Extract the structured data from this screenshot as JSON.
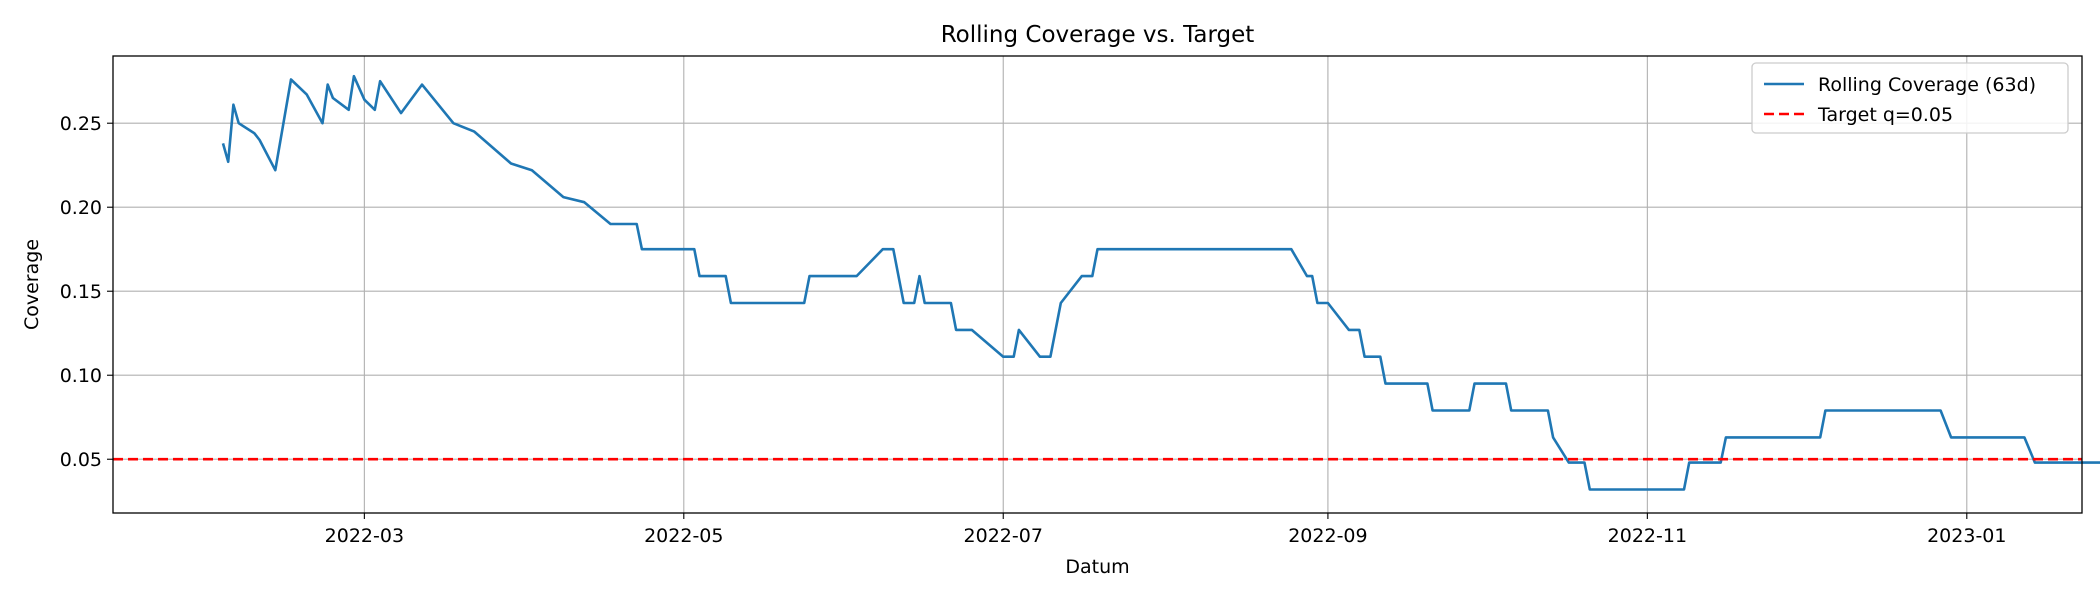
{
  "chart_data": {
    "type": "line",
    "title": "Rolling Coverage vs. Target",
    "xlabel": "Datum",
    "ylabel": "Coverage",
    "x_type": "date",
    "xlim": [
      "2022-01-12",
      "2023-01-23"
    ],
    "ylim": [
      0.018,
      0.29
    ],
    "grid": true,
    "legend_position": "top-right",
    "x_ticks": [
      "2022-03",
      "2022-05",
      "2022-07",
      "2022-09",
      "2022-11",
      "2023-01"
    ],
    "y_ticks": [
      "0.05",
      "0.10",
      "0.15",
      "0.20",
      "0.25"
    ],
    "series": [
      {
        "name": "Rolling Coverage (63d)",
        "color": "#1f77b4",
        "style": "solid",
        "points": [
          [
            "2022-02-02",
            0.238
          ],
          [
            "2022-02-03",
            0.227
          ],
          [
            "2022-02-04",
            0.261
          ],
          [
            "2022-02-05",
            0.25
          ],
          [
            "2022-02-08",
            0.244
          ],
          [
            "2022-02-09",
            0.24
          ],
          [
            "2022-02-12",
            0.222
          ],
          [
            "2022-02-15",
            0.276
          ],
          [
            "2022-02-18",
            0.267
          ],
          [
            "2022-02-21",
            0.25
          ],
          [
            "2022-02-22",
            0.273
          ],
          [
            "2022-02-23",
            0.265
          ],
          [
            "2022-02-26",
            0.258
          ],
          [
            "2022-02-27",
            0.278
          ],
          [
            "2022-02-29",
            0.264
          ],
          [
            "2022-03-03",
            0.258
          ],
          [
            "2022-03-04",
            0.275
          ],
          [
            "2022-03-08",
            0.256
          ],
          [
            "2022-03-12",
            0.273
          ],
          [
            "2022-03-18",
            0.25
          ],
          [
            "2022-03-22",
            0.245
          ],
          [
            "2022-03-29",
            0.226
          ],
          [
            "2022-04-02",
            0.222
          ],
          [
            "2022-04-08",
            0.206
          ],
          [
            "2022-04-12",
            0.203
          ],
          [
            "2022-04-17",
            0.19
          ],
          [
            "2022-04-22",
            0.19
          ],
          [
            "2022-04-23",
            0.175
          ],
          [
            "2022-05-03",
            0.175
          ],
          [
            "2022-05-04",
            0.159
          ],
          [
            "2022-05-09",
            0.159
          ],
          [
            "2022-05-10",
            0.143
          ],
          [
            "2022-04-30",
            0.143
          ],
          [
            "2022-05-01",
            0.159
          ],
          [
            "2022-05-16",
            0.159
          ]
        ]
      },
      {
        "name": "Target q=0.05",
        "color": "#ff0000",
        "style": "dashed",
        "y_constant": 0.05
      }
    ]
  }
}
